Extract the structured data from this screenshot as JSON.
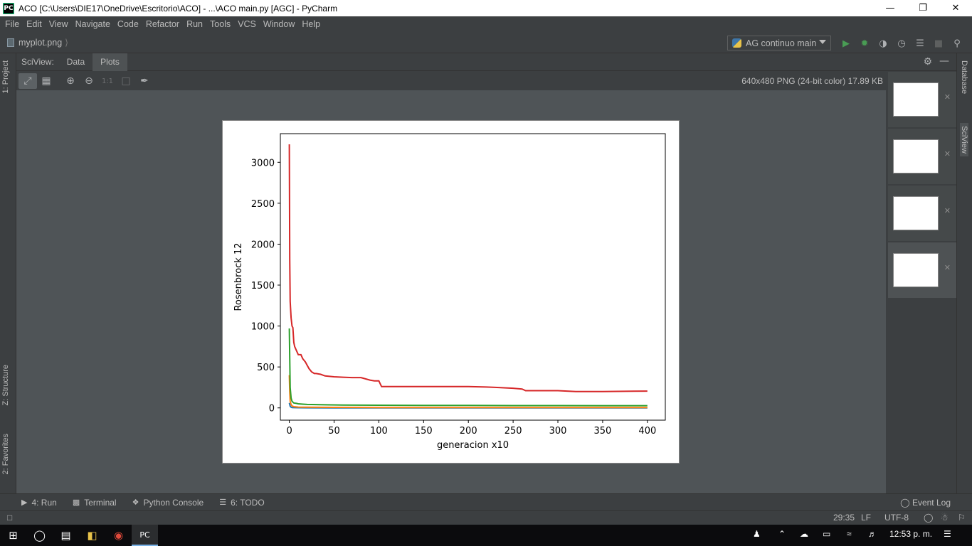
{
  "window": {
    "title": "ACO [C:\\Users\\DIE17\\OneDrive\\Escritorio\\ACO] - ...\\ACO main.py [AGC] - PyCharm",
    "app_icon": "PC"
  },
  "menu": [
    "File",
    "Edit",
    "View",
    "Navigate",
    "Code",
    "Refactor",
    "Run",
    "Tools",
    "VCS",
    "Window",
    "Help"
  ],
  "navbar": {
    "file": "myplot.png",
    "run_config": "AG continuo main"
  },
  "sciview": {
    "label": "SciView:",
    "tabs": [
      "Data",
      "Plots"
    ],
    "active_tab": "Plots",
    "image_info": "640x480 PNG (24-bit color) 17.89 KB",
    "zoom_actual_label": "1:1"
  },
  "side_tabs": {
    "left": [
      "1: Project",
      "Z: Structure",
      "2: Favorites"
    ],
    "right": [
      "Database",
      "SciView"
    ]
  },
  "bottom_tabs": {
    "run": "4: Run",
    "terminal": "Terminal",
    "python_console": "Python Console",
    "todo": "6: TODO",
    "event_log": "Event Log"
  },
  "status": {
    "position": "29:35",
    "line_sep": "LF",
    "encoding": "UTF-8"
  },
  "taskbar": {
    "clock": "12:53 p. m."
  },
  "colors": {
    "red": "#d62728",
    "green": "#2ca02c",
    "orange": "#ff7f0e",
    "blue": "#1f77b4"
  },
  "chart_data": {
    "type": "line",
    "title": "",
    "xlabel": "generacion x10",
    "ylabel": "Rosenbrock 12",
    "xlim": [
      -10,
      420
    ],
    "ylim": [
      -150,
      3350
    ],
    "xticks": [
      0,
      50,
      100,
      150,
      200,
      250,
      300,
      350,
      400
    ],
    "yticks": [
      0,
      500,
      1000,
      1500,
      2000,
      2500,
      3000
    ],
    "grid": false,
    "series": [
      {
        "color": "#d62728",
        "x": [
          0,
          0.5,
          1,
          2,
          3,
          4,
          5,
          6,
          8,
          10,
          13,
          15,
          18,
          20,
          22,
          25,
          28,
          30,
          35,
          40,
          50,
          60,
          70,
          80,
          90,
          95,
          100,
          103,
          105,
          120,
          150,
          200,
          220,
          230,
          240,
          250,
          260,
          264,
          270,
          290,
          300,
          310,
          320,
          350,
          400
        ],
        "y": [
          3220,
          1800,
          1300,
          1100,
          1000,
          980,
          800,
          750,
          700,
          650,
          650,
          600,
          560,
          520,
          480,
          440,
          420,
          420,
          410,
          390,
          380,
          375,
          370,
          370,
          340,
          330,
          330,
          260,
          260,
          260,
          260,
          260,
          255,
          250,
          245,
          240,
          230,
          210,
          210,
          210,
          210,
          205,
          200,
          200,
          205
        ]
      },
      {
        "color": "#2ca02c",
        "x": [
          0,
          0.5,
          1,
          2,
          3,
          5,
          8,
          10,
          15,
          20,
          30,
          40,
          60,
          80,
          100,
          150,
          200,
          250,
          300,
          350,
          400
        ],
        "y": [
          970,
          600,
          250,
          120,
          80,
          60,
          55,
          50,
          45,
          42,
          40,
          38,
          35,
          33,
          32,
          30,
          30,
          28,
          28,
          27,
          27
        ]
      },
      {
        "color": "#ff7f0e",
        "x": [
          0,
          0.5,
          1,
          2,
          3,
          5,
          10,
          20,
          50,
          100,
          200,
          300,
          400
        ],
        "y": [
          400,
          200,
          80,
          40,
          25,
          15,
          10,
          8,
          6,
          5,
          5,
          4,
          4
        ]
      },
      {
        "color": "#1f77b4",
        "x": [
          0,
          1,
          2,
          3,
          5,
          10,
          20,
          50,
          100,
          200,
          300,
          400
        ],
        "y": [
          60,
          20,
          8,
          5,
          3,
          2,
          1,
          0.5,
          0.3,
          0.2,
          0.1,
          0.1
        ]
      }
    ]
  }
}
